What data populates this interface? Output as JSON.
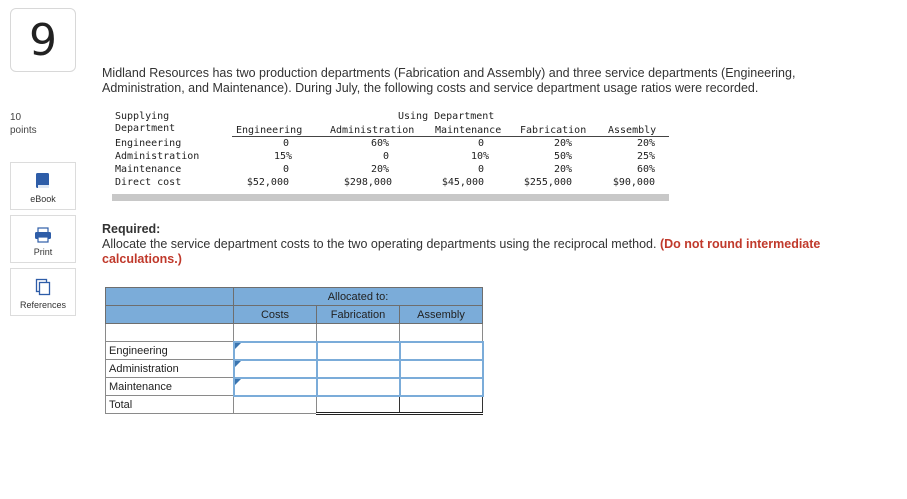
{
  "question": {
    "number": "9",
    "points_value": "10",
    "points_label": "points"
  },
  "tools": [
    {
      "label": "eBook",
      "icon": "book-icon"
    },
    {
      "label": "Print",
      "icon": "printer-icon"
    },
    {
      "label": "References",
      "icon": "references-icon"
    }
  ],
  "prompt": "Midland Resources has two production departments (Fabrication and Assembly) and three service departments (Engineering, Administration, and Maintenance). During July, the following costs and service department usage ratios were recorded.",
  "usage_table": {
    "corner": [
      "Supplying",
      "Department"
    ],
    "group_header": "Using Department",
    "columns": [
      "Engineering",
      "Administration",
      "Maintenance",
      "Fabrication",
      "Assembly"
    ],
    "rows": [
      {
        "label": "Engineering",
        "values": [
          "0",
          "60%",
          "0",
          "20%",
          "20%"
        ]
      },
      {
        "label": "Administration",
        "values": [
          "15%",
          "0",
          "10%",
          "50%",
          "25%"
        ]
      },
      {
        "label": "Maintenance",
        "values": [
          "0",
          "20%",
          "0",
          "20%",
          "60%"
        ]
      },
      {
        "label": "Direct cost",
        "values": [
          "$52,000",
          "$298,000",
          "$45,000",
          "$255,000",
          "$90,000"
        ]
      }
    ]
  },
  "required": {
    "heading": "Required:",
    "text": "Allocate the service department costs to the two operating departments using the reciprocal method.",
    "note": "(Do not round intermediate calculations.)"
  },
  "answer_table": {
    "group_header": "Allocated to:",
    "columns": [
      "Costs",
      "Fabrication",
      "Assembly"
    ],
    "rows": [
      "Engineering",
      "Administration",
      "Maintenance"
    ],
    "total_label": "Total"
  }
}
